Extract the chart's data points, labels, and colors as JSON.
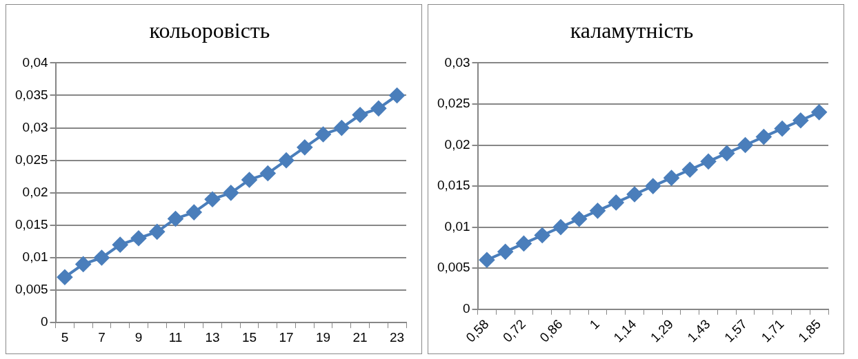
{
  "chart_data": [
    {
      "type": "line",
      "title": "кольоровість",
      "categories": [
        "5",
        null,
        "7",
        null,
        "9",
        null,
        "11",
        null,
        "13",
        null,
        "15",
        null,
        "17",
        null,
        "19",
        null,
        "21",
        null,
        "23"
      ],
      "series": [
        {
          "color": "#4a7ebb",
          "values": [
            0.007,
            0.009,
            0.01,
            0.012,
            0.013,
            0.014,
            0.016,
            0.017,
            0.019,
            0.02,
            0.022,
            0.023,
            0.025,
            0.027,
            0.029,
            0.03,
            0.032,
            0.033,
            0.035
          ]
        }
      ],
      "ylim": [
        0,
        0.04
      ],
      "yticks": [
        0,
        {
          "value": 0.005,
          "label": "0,005"
        },
        {
          "value": 0.01,
          "label": "0,01"
        },
        {
          "value": 0.015,
          "label": "0,015"
        },
        {
          "value": 0.02,
          "label": "0,02"
        },
        {
          "value": 0.025,
          "label": "0,025"
        },
        {
          "value": 0.03,
          "label": "0,03"
        },
        {
          "value": 0.035,
          "label": "0,035"
        },
        {
          "value": 0.04,
          "label": "0,04"
        }
      ],
      "grid": "y",
      "legend": false,
      "marker": "diamond",
      "line_style": "solid"
    },
    {
      "type": "line",
      "title": "каламутність",
      "categories": [
        "0,58",
        null,
        "0,72",
        null,
        "0,86",
        null,
        "1",
        null,
        "1,14",
        null,
        "1,29",
        null,
        "1,43",
        null,
        "1,57",
        null,
        "1,71",
        null,
        "1,85"
      ],
      "series": [
        {
          "color": "#4a7ebb",
          "values": [
            0.006,
            0.007,
            0.008,
            0.009,
            0.01,
            0.011,
            0.012,
            0.013,
            0.014,
            0.015,
            0.016,
            0.017,
            0.018,
            0.019,
            0.02,
            0.021,
            0.022,
            0.023,
            0.024
          ]
        }
      ],
      "ylim": [
        0,
        0.03
      ],
      "yticks": [
        0,
        {
          "value": 0.005,
          "label": "0,005"
        },
        {
          "value": 0.01,
          "label": "0,01"
        },
        {
          "value": 0.015,
          "label": "0,015"
        },
        {
          "value": 0.02,
          "label": "0,02"
        },
        {
          "value": 0.025,
          "label": "0,025"
        },
        {
          "value": 0.03,
          "label": "0,03"
        }
      ],
      "grid": "y",
      "legend": false,
      "marker": "diamond",
      "line_style": "solid"
    }
  ]
}
